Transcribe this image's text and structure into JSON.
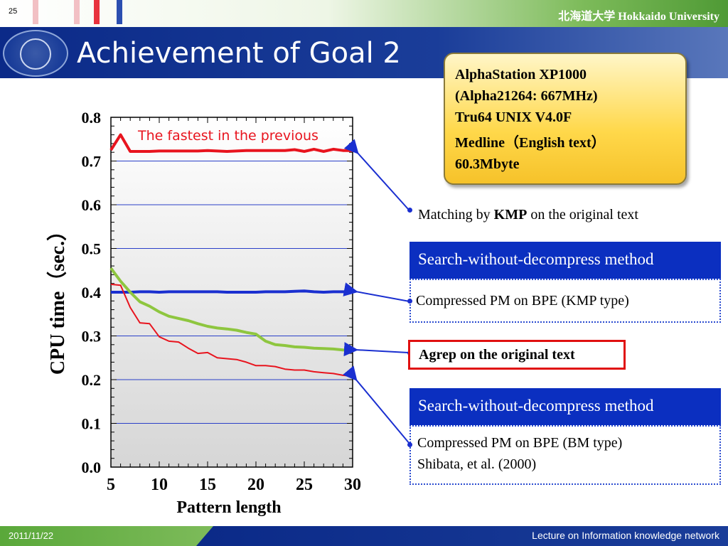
{
  "header": {
    "slide_number": "25",
    "university": "北海道大学 Hokkaido University",
    "stripe_colors": [
      "#f2c0c4",
      "#e8323e",
      "#2b4fb0"
    ]
  },
  "title": "Achievement of Goal 2",
  "spec": {
    "line1": "AlphaStation XP1000",
    "line2": "(Alpha21264: 667MHz)",
    "line3": "Tru64 UNIX V4.0F",
    "line4": "Medline（English text）",
    "line5": "60.3Mbyte"
  },
  "annotations": {
    "kmp_prefix": "Matching by ",
    "kmp_bold": "KMP",
    "kmp_suffix": " on the original text",
    "method_header_1": "Search-without-decompress method",
    "method_1_desc": "Compressed PM on BPE (KMP type)",
    "agrep": "Agrep on the original text",
    "method_header_2": "Search-without-decompress method",
    "method_2_line1": "Compressed PM on BPE (BM type)",
    "method_2_line2": "Shibata, et al. (2000)"
  },
  "footer": {
    "date": "2011/11/22",
    "lecture": "Lecture on Information knowledge network"
  },
  "chart_data": {
    "type": "line",
    "title": "",
    "xlabel": "Pattern length",
    "ylabel": "CPU time（sec.）",
    "xlim": [
      5,
      30
    ],
    "ylim": [
      0,
      0.8
    ],
    "x_ticks": [
      "5",
      "10",
      "15",
      "20",
      "25",
      "30"
    ],
    "y_ticks": [
      "0.0",
      "0.1",
      "0.2",
      "0.3",
      "0.4",
      "0.5",
      "0.6",
      "0.7",
      "0.8"
    ],
    "annotation": "The fastest in the previous",
    "grid": "horizontal",
    "series": [
      {
        "color": "#e8141e",
        "x": [
          5,
          6,
          7,
          8,
          9,
          10,
          11,
          12,
          13,
          14,
          15,
          16,
          17,
          18,
          19,
          20,
          21,
          22,
          23,
          24,
          25,
          26,
          27,
          28,
          29,
          30
        ],
        "y": [
          0.725,
          0.76,
          0.722,
          0.722,
          0.722,
          0.723,
          0.723,
          0.723,
          0.723,
          0.723,
          0.724,
          0.723,
          0.722,
          0.723,
          0.724,
          0.724,
          0.724,
          0.724,
          0.724,
          0.726,
          0.722,
          0.727,
          0.722,
          0.727,
          0.724,
          0.724
        ]
      },
      {
        "color": "#1a2fd0",
        "x": [
          5,
          6,
          7,
          8,
          9,
          10,
          11,
          12,
          13,
          14,
          15,
          16,
          17,
          18,
          19,
          20,
          21,
          22,
          23,
          24,
          25,
          26,
          27,
          28,
          29,
          30
        ],
        "y": [
          0.4,
          0.4,
          0.4,
          0.401,
          0.401,
          0.4,
          0.401,
          0.401,
          0.401,
          0.401,
          0.401,
          0.401,
          0.4,
          0.4,
          0.4,
          0.4,
          0.401,
          0.401,
          0.401,
          0.402,
          0.403,
          0.401,
          0.4,
          0.401,
          0.401,
          0.401
        ]
      },
      {
        "color": "#8ec63f",
        "x": [
          5,
          6,
          7,
          8,
          9,
          10,
          11,
          12,
          13,
          14,
          15,
          16,
          17,
          18,
          19,
          20,
          21,
          22,
          23,
          24,
          25,
          26,
          27,
          28,
          29,
          30
        ],
        "y": [
          0.455,
          0.425,
          0.4,
          0.378,
          0.368,
          0.355,
          0.345,
          0.34,
          0.335,
          0.328,
          0.322,
          0.318,
          0.316,
          0.313,
          0.308,
          0.304,
          0.288,
          0.28,
          0.278,
          0.275,
          0.274,
          0.272,
          0.271,
          0.27,
          0.268,
          0.266
        ]
      },
      {
        "color": "#e8141e",
        "x": [
          5,
          6,
          7,
          8,
          9,
          10,
          11,
          12,
          13,
          14,
          15,
          16,
          17,
          18,
          19,
          20,
          21,
          22,
          23,
          24,
          25,
          26,
          27,
          28,
          29,
          30
        ],
        "y": [
          0.418,
          0.416,
          0.365,
          0.33,
          0.328,
          0.298,
          0.288,
          0.286,
          0.272,
          0.26,
          0.262,
          0.25,
          0.248,
          0.246,
          0.24,
          0.232,
          0.232,
          0.23,
          0.224,
          0.222,
          0.222,
          0.218,
          0.216,
          0.214,
          0.21,
          0.208
        ]
      }
    ]
  }
}
